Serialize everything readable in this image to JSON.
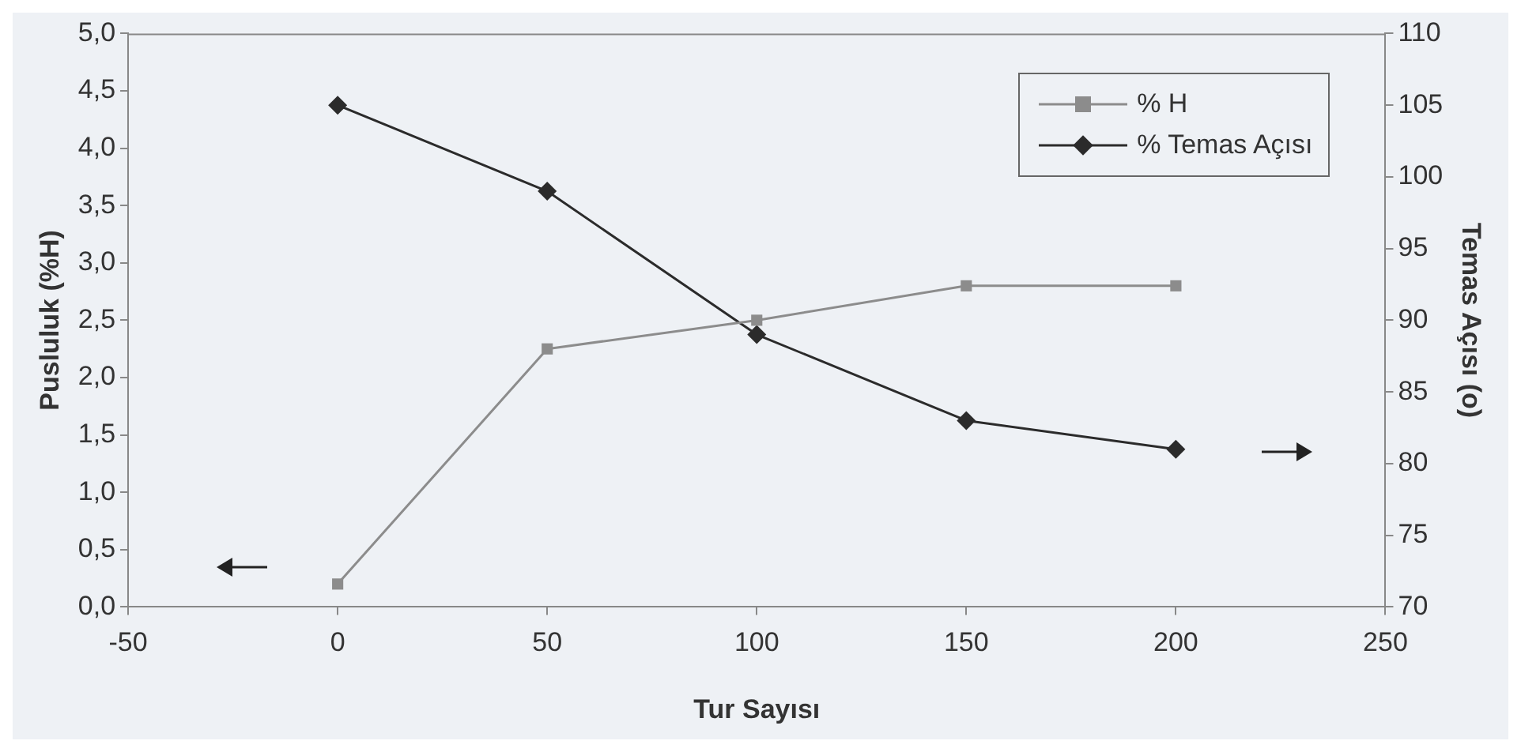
{
  "chart_data": {
    "type": "line",
    "xlabel": "Tur Sayısı",
    "ylabel": "Pusluluk (%H)",
    "y2label": "Temas Açısı (o)",
    "x": [
      0,
      50,
      100,
      150,
      200
    ],
    "series": [
      {
        "name": "% H",
        "color": "#8c8c8c",
        "marker": "square",
        "values": [
          0.2,
          2.25,
          2.5,
          2.8,
          2.8
        ]
      },
      {
        "name": "% Temas Açısı",
        "color": "#2b2b2b",
        "marker": "diamond",
        "axis": "y2",
        "values": [
          105,
          99,
          89,
          83,
          81
        ]
      }
    ],
    "xlim": [
      -50,
      250
    ],
    "xticks": [
      -50,
      0,
      50,
      100,
      150,
      200,
      250
    ],
    "ylim": [
      0,
      5
    ],
    "yticks": [
      {
        "value": 0,
        "label": "0,0"
      },
      {
        "value": 0.5,
        "label": "0,5"
      },
      {
        "value": 1,
        "label": "1,0"
      },
      {
        "value": 1.5,
        "label": "1,5"
      },
      {
        "value": 2,
        "label": "2,0"
      },
      {
        "value": 2.5,
        "label": "2,5"
      },
      {
        "value": 3,
        "label": "3,0"
      },
      {
        "value": 3.5,
        "label": "3,5"
      },
      {
        "value": 4,
        "label": "4,0"
      },
      {
        "value": 4.5,
        "label": "4,5"
      },
      {
        "value": 5,
        "label": "5,0"
      }
    ],
    "y2lim": [
      70,
      110
    ],
    "y2ticks": [
      70,
      75,
      80,
      85,
      90,
      95,
      100,
      105,
      110
    ],
    "grid": false,
    "legend": "top right",
    "line_style": "solid"
  }
}
